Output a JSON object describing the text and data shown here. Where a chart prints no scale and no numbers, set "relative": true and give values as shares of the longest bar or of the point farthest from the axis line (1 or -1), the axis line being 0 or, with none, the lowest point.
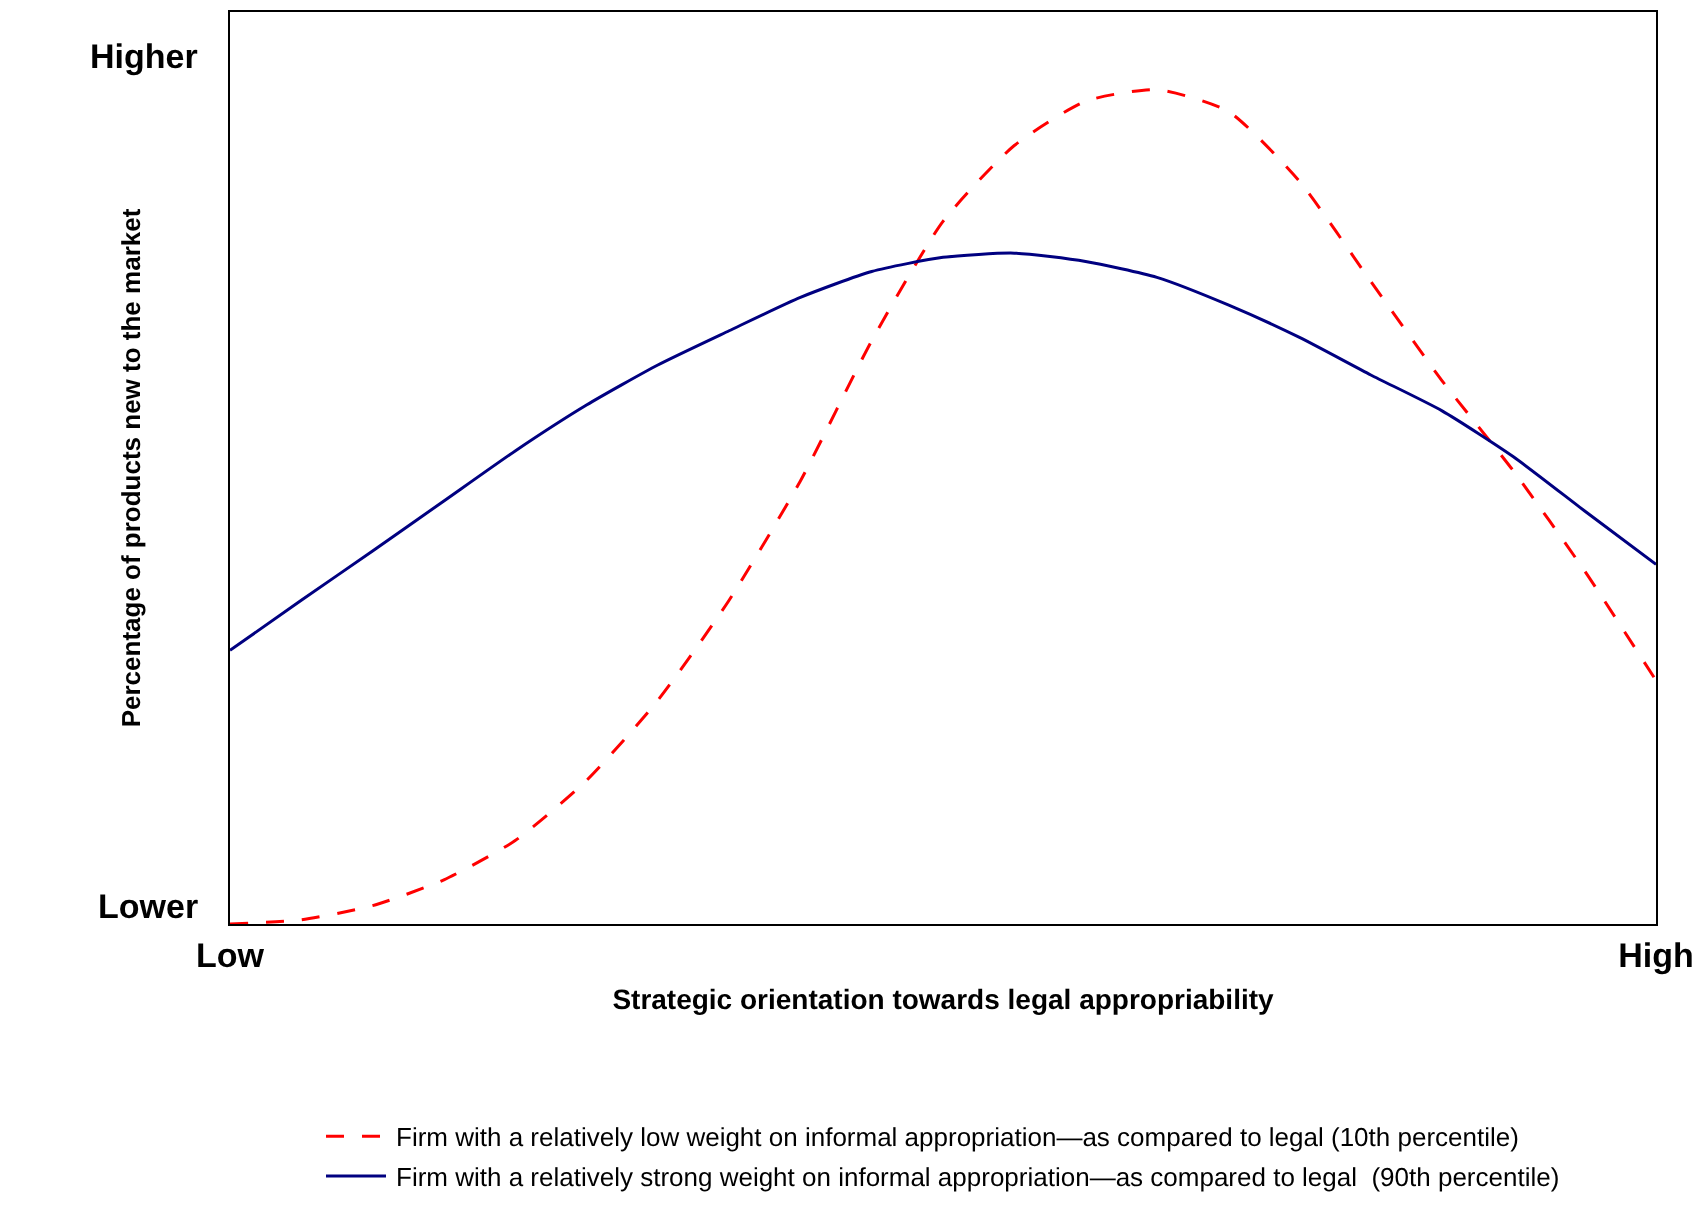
{
  "chart_data": {
    "type": "line",
    "relative": true,
    "xlabel": "Strategic orientation towards legal appropriability",
    "ylabel": "Percentage of products new to the market",
    "annotations": [
      "Higher",
      "Lower"
    ],
    "categories": [
      "Low",
      null,
      null,
      null,
      null,
      null,
      null,
      null,
      null,
      null,
      null,
      null,
      null,
      null,
      null,
      null,
      null,
      null,
      null,
      null,
      "High"
    ],
    "series": [
      {
        "name": "Firm with a relatively low weight on informal appropriation—as compared to legal (10th percentile)",
        "color": "#ff0000",
        "line_style": "dashed",
        "values": [
          0,
          0.005,
          0.022,
          0.053,
          0.1,
          0.172,
          0.268,
          0.388,
          0.531,
          0.699,
          0.842,
          0.933,
          0.986,
          1,
          0.974,
          0.89,
          0.77,
          0.651,
          0.543,
          0.423,
          0.292
        ]
      },
      {
        "name": "Firm with a relatively strong weight on informal appropriation—as compared to legal  (90th percentile)",
        "color": "#000080",
        "line_style": "solid",
        "values": [
          0.328,
          0.388,
          0.447,
          0.507,
          0.567,
          0.622,
          0.67,
          0.711,
          0.751,
          0.782,
          0.799,
          0.804,
          0.794,
          0.775,
          0.742,
          0.703,
          0.658,
          0.615,
          0.56,
          0.495,
          0.431
        ]
      }
    ],
    "legend": "bottom",
    "marker": "none"
  }
}
